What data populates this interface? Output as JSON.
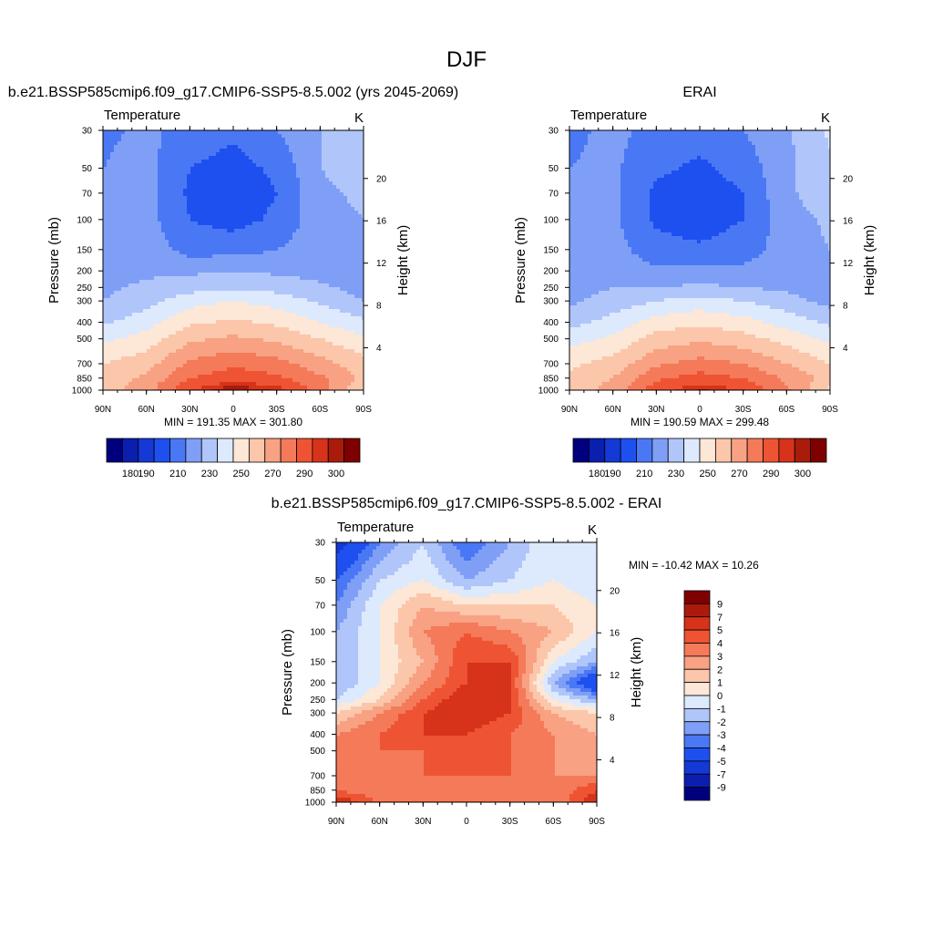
{
  "main_title": "DJF",
  "panels": [
    {
      "title": "b.e21.BSSP585cmip6.f09_g17.CMIP6-SSP5-8.5.002 (yrs 2045-2069)",
      "subtitle_left": "Temperature",
      "subtitle_right": "K",
      "stats": "MIN = 191.35  MAX = 301.80"
    },
    {
      "title": "ERAI",
      "subtitle_left": "Temperature",
      "subtitle_right": "K",
      "stats": "MIN = 190.59  MAX = 299.48"
    },
    {
      "title": "b.e21.BSSP585cmip6.f09_g17.CMIP6-SSP5-8.5.002 - ERAI",
      "subtitle_left": "Temperature",
      "subtitle_right": "K",
      "stats": "MIN = -10.42  MAX =  10.26"
    }
  ],
  "axes": {
    "ylabel": "Pressure (mb)",
    "y2label": "Height (km)",
    "x_ticks": [
      "90N",
      "60N",
      "30N",
      "0",
      "30S",
      "60S",
      "90S"
    ],
    "y_ticks": [
      "30",
      "50",
      "70",
      "100",
      "150",
      "200",
      "250",
      "300",
      "400",
      "500",
      "700",
      "850",
      "1000"
    ],
    "y2_ticks": [
      "20",
      "16",
      "12",
      "8",
      "4"
    ]
  },
  "colorbar_abs": {
    "colors": [
      "#00007f",
      "#0a1fb0",
      "#1439d6",
      "#1e50f0",
      "#4a78f5",
      "#7f9ff7",
      "#b0c6fa",
      "#dde9fd",
      "#fde7d6",
      "#fbc6aa",
      "#f8a183",
      "#f47a59",
      "#ee5433",
      "#d7331a",
      "#aa1b0b",
      "#7f0000"
    ],
    "labels": [
      "180",
      "190",
      "210",
      "230",
      "250",
      "270",
      "290",
      "300"
    ]
  },
  "colorbar_diff": {
    "colors": [
      "#00007f",
      "#0a1fb0",
      "#1439d6",
      "#1e50f0",
      "#4a78f5",
      "#7f9ff7",
      "#b0c6fa",
      "#dde9fd",
      "#fde7d6",
      "#fbc6aa",
      "#f8a183",
      "#f47a59",
      "#ee5433",
      "#d7331a",
      "#aa1b0b",
      "#7f0000"
    ],
    "labels": [
      "9",
      "7",
      "5",
      "4",
      "3",
      "2",
      "1",
      "0",
      "-1",
      "-2",
      "-3",
      "-4",
      "-5",
      "-7",
      "-9"
    ]
  },
  "chart_data": [
    {
      "type": "heatmap",
      "title": "b.e21.BSSP585cmip6.f09_g17.CMIP6-SSP5-8.5.002 (yrs 2045-2069)",
      "variable": "Temperature",
      "units": "K",
      "x": [
        "90N",
        "60N",
        "30N",
        "0",
        "30S",
        "60S",
        "90S"
      ],
      "y": [
        30,
        50,
        70,
        100,
        150,
        200,
        250,
        300,
        400,
        500,
        700,
        850,
        1000
      ],
      "values": [
        [
          208,
          212,
          206,
          202,
          210,
          220,
          228
        ],
        [
          210,
          214,
          200,
          196,
          202,
          220,
          224
        ],
        [
          210,
          214,
          198,
          193,
          200,
          218,
          222
        ],
        [
          212,
          214,
          200,
          196,
          202,
          216,
          220
        ],
        [
          214,
          216,
          206,
          206,
          210,
          216,
          218
        ],
        [
          216,
          218,
          218,
          220,
          218,
          216,
          212
        ],
        [
          218,
          222,
          226,
          228,
          226,
          222,
          216
        ],
        [
          220,
          226,
          236,
          240,
          236,
          228,
          220
        ],
        [
          228,
          236,
          248,
          252,
          248,
          240,
          232
        ],
        [
          238,
          244,
          258,
          262,
          258,
          250,
          242
        ],
        [
          250,
          256,
          272,
          278,
          274,
          264,
          254
        ],
        [
          254,
          262,
          280,
          286,
          282,
          272,
          258
        ],
        [
          256,
          266,
          290,
          300,
          294,
          276,
          250
        ]
      ],
      "ylabel": "Pressure (mb)",
      "y2label": "Height (km)",
      "stats": {
        "min": 191.35,
        "max": 301.8
      }
    },
    {
      "type": "heatmap",
      "title": "ERAI",
      "variable": "Temperature",
      "units": "K",
      "x": [
        "90N",
        "60N",
        "30N",
        "0",
        "30S",
        "60S",
        "90S"
      ],
      "y": [
        30,
        50,
        70,
        100,
        150,
        200,
        250,
        300,
        400,
        500,
        700,
        850,
        1000
      ],
      "values": [
        [
          208,
          212,
          208,
          204,
          210,
          218,
          232
        ],
        [
          210,
          212,
          202,
          198,
          204,
          218,
          228
        ],
        [
          210,
          212,
          198,
          194,
          200,
          218,
          226
        ],
        [
          210,
          212,
          198,
          194,
          200,
          216,
          222
        ],
        [
          212,
          214,
          204,
          202,
          206,
          214,
          220
        ],
        [
          214,
          216,
          212,
          212,
          212,
          214,
          218
        ],
        [
          216,
          220,
          220,
          222,
          220,
          218,
          214
        ],
        [
          218,
          224,
          230,
          234,
          230,
          224,
          216
        ],
        [
          226,
          234,
          244,
          248,
          244,
          236,
          228
        ],
        [
          236,
          242,
          254,
          258,
          254,
          246,
          238
        ],
        [
          248,
          254,
          268,
          274,
          270,
          260,
          250
        ],
        [
          252,
          260,
          278,
          284,
          280,
          268,
          256
        ],
        [
          254,
          264,
          286,
          296,
          290,
          272,
          248
        ]
      ],
      "ylabel": "Pressure (mb)",
      "y2label": "Height (km)",
      "stats": {
        "min": 190.59,
        "max": 299.48
      }
    },
    {
      "type": "heatmap",
      "title": "b.e21.BSSP585cmip6.f09_g17.CMIP6-SSP5-8.5.002 - ERAI",
      "variable": "Temperature",
      "units": "K",
      "x": [
        "90N",
        "60N",
        "30N",
        "0",
        "30S",
        "60S",
        "90S"
      ],
      "y": [
        30,
        50,
        70,
        100,
        150,
        200,
        250,
        300,
        400,
        500,
        700,
        850,
        1000
      ],
      "values": [
        [
          -8,
          -4,
          -2,
          -5,
          -3,
          -1,
          -2
        ],
        [
          -5,
          -2,
          -1,
          -3,
          -2,
          -1,
          -2
        ],
        [
          -4,
          -1,
          1,
          0,
          0,
          0,
          -1
        ],
        [
          -3,
          -1,
          2,
          3,
          2,
          1,
          -1
        ],
        [
          -3,
          -1,
          1,
          4,
          4,
          -1,
          -3
        ],
        [
          -3,
          -1,
          2,
          4,
          4,
          -3,
          -7
        ],
        [
          -2,
          0,
          3,
          5,
          4,
          -1,
          -3
        ],
        [
          0,
          2,
          4,
          5,
          4,
          1,
          0
        ],
        [
          2,
          3,
          4,
          4,
          3,
          2,
          1
        ],
        [
          2,
          3,
          3,
          3,
          3,
          2,
          1
        ],
        [
          2,
          2,
          3,
          3,
          3,
          2,
          2
        ],
        [
          3,
          2,
          2,
          2,
          2,
          2,
          4
        ],
        [
          5,
          3,
          3,
          3,
          3,
          2,
          5
        ]
      ],
      "ylabel": "Pressure (mb)",
      "y2label": "Height (km)",
      "stats": {
        "min": -10.42,
        "max": 10.26
      }
    }
  ]
}
